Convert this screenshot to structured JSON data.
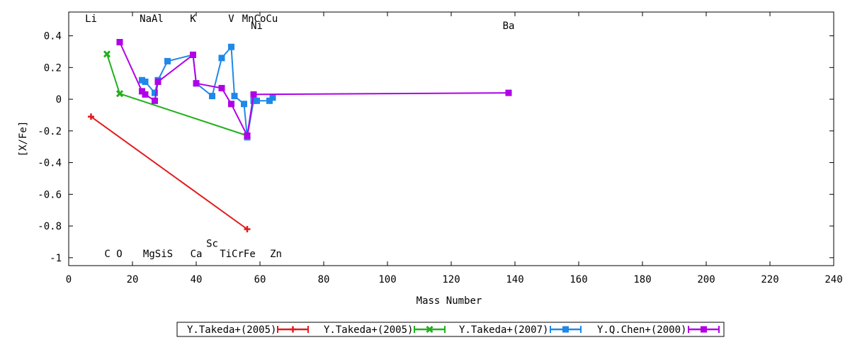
{
  "chart_data": {
    "type": "line",
    "xlabel": "Mass Number",
    "ylabel": "[X/Fe]",
    "xlim": [
      0,
      240
    ],
    "ylim": [
      -1.05,
      0.55
    ],
    "x_ticks": [
      0,
      20,
      40,
      60,
      80,
      100,
      120,
      140,
      160,
      180,
      200,
      220,
      240
    ],
    "y_ticks": [
      0.4,
      0.2,
      0,
      -0.2,
      -0.4,
      -0.6,
      -0.8,
      -1
    ],
    "x_tick_labels": [
      "0",
      "20",
      "40",
      "60",
      "80",
      "100",
      "120",
      "140",
      "160",
      "180",
      "200",
      "220",
      "240"
    ],
    "y_tick_labels": [
      "0.4",
      "0.2",
      "0",
      "-0.2",
      "-0.4",
      "-0.6",
      "-0.8",
      "-1"
    ],
    "legend_position": "bottom-center",
    "element_labels": [
      {
        "text": "Li",
        "x": 7,
        "y": 0.51
      },
      {
        "text": "NaAl",
        "x": 26,
        "y": 0.51
      },
      {
        "text": "K",
        "x": 39,
        "y": 0.51
      },
      {
        "text": "V",
        "x": 51,
        "y": 0.51
      },
      {
        "text": "MnCoCu",
        "x": 60,
        "y": 0.51
      },
      {
        "text": "Ni",
        "x": 59,
        "y": 0.465
      },
      {
        "text": "Ba",
        "x": 138,
        "y": 0.465
      },
      {
        "text": "Sc",
        "x": 45,
        "y": -0.91
      },
      {
        "text": "C O",
        "x": 14,
        "y": -0.975
      },
      {
        "text": "MgSiS",
        "x": 28,
        "y": -0.975
      },
      {
        "text": "Ca",
        "x": 40,
        "y": -0.975
      },
      {
        "text": "TiCrFe",
        "x": 53,
        "y": -0.975
      },
      {
        "text": "Zn",
        "x": 65,
        "y": -0.975
      }
    ],
    "series": [
      {
        "name": "Y.Takeda+(2005)",
        "color": "#e31a1c",
        "marker": "plus",
        "x": [
          7,
          56
        ],
        "y": [
          -0.11,
          -0.82
        ]
      },
      {
        "name": "Y.Takeda+(2005)",
        "color": "#22b01c",
        "marker": "cross",
        "x": [
          12,
          16,
          56
        ],
        "y": [
          0.285,
          0.035,
          -0.23
        ]
      },
      {
        "name": "Y.Takeda+(2007)",
        "color": "#1f88e8",
        "marker": "square",
        "x": [
          23,
          24,
          27,
          28,
          31,
          39,
          40,
          45,
          48,
          51,
          52,
          55,
          56,
          58,
          59,
          63,
          64
        ],
        "y": [
          0.12,
          0.11,
          0.04,
          0.12,
          0.24,
          0.28,
          0.1,
          0.02,
          0.26,
          0.33,
          0.02,
          -0.03,
          -0.24,
          -0.01,
          -0.01,
          -0.01,
          0.01
        ]
      },
      {
        "name": "Y.Q.Chen+(2000)",
        "color": "#b000e8",
        "marker": "square",
        "x": [
          16,
          23,
          24,
          27,
          28,
          39,
          40,
          48,
          51,
          56,
          58,
          138
        ],
        "y": [
          0.36,
          0.05,
          0.03,
          -0.01,
          0.11,
          0.28,
          0.1,
          0.07,
          -0.03,
          -0.23,
          0.03,
          0.04
        ]
      }
    ]
  }
}
